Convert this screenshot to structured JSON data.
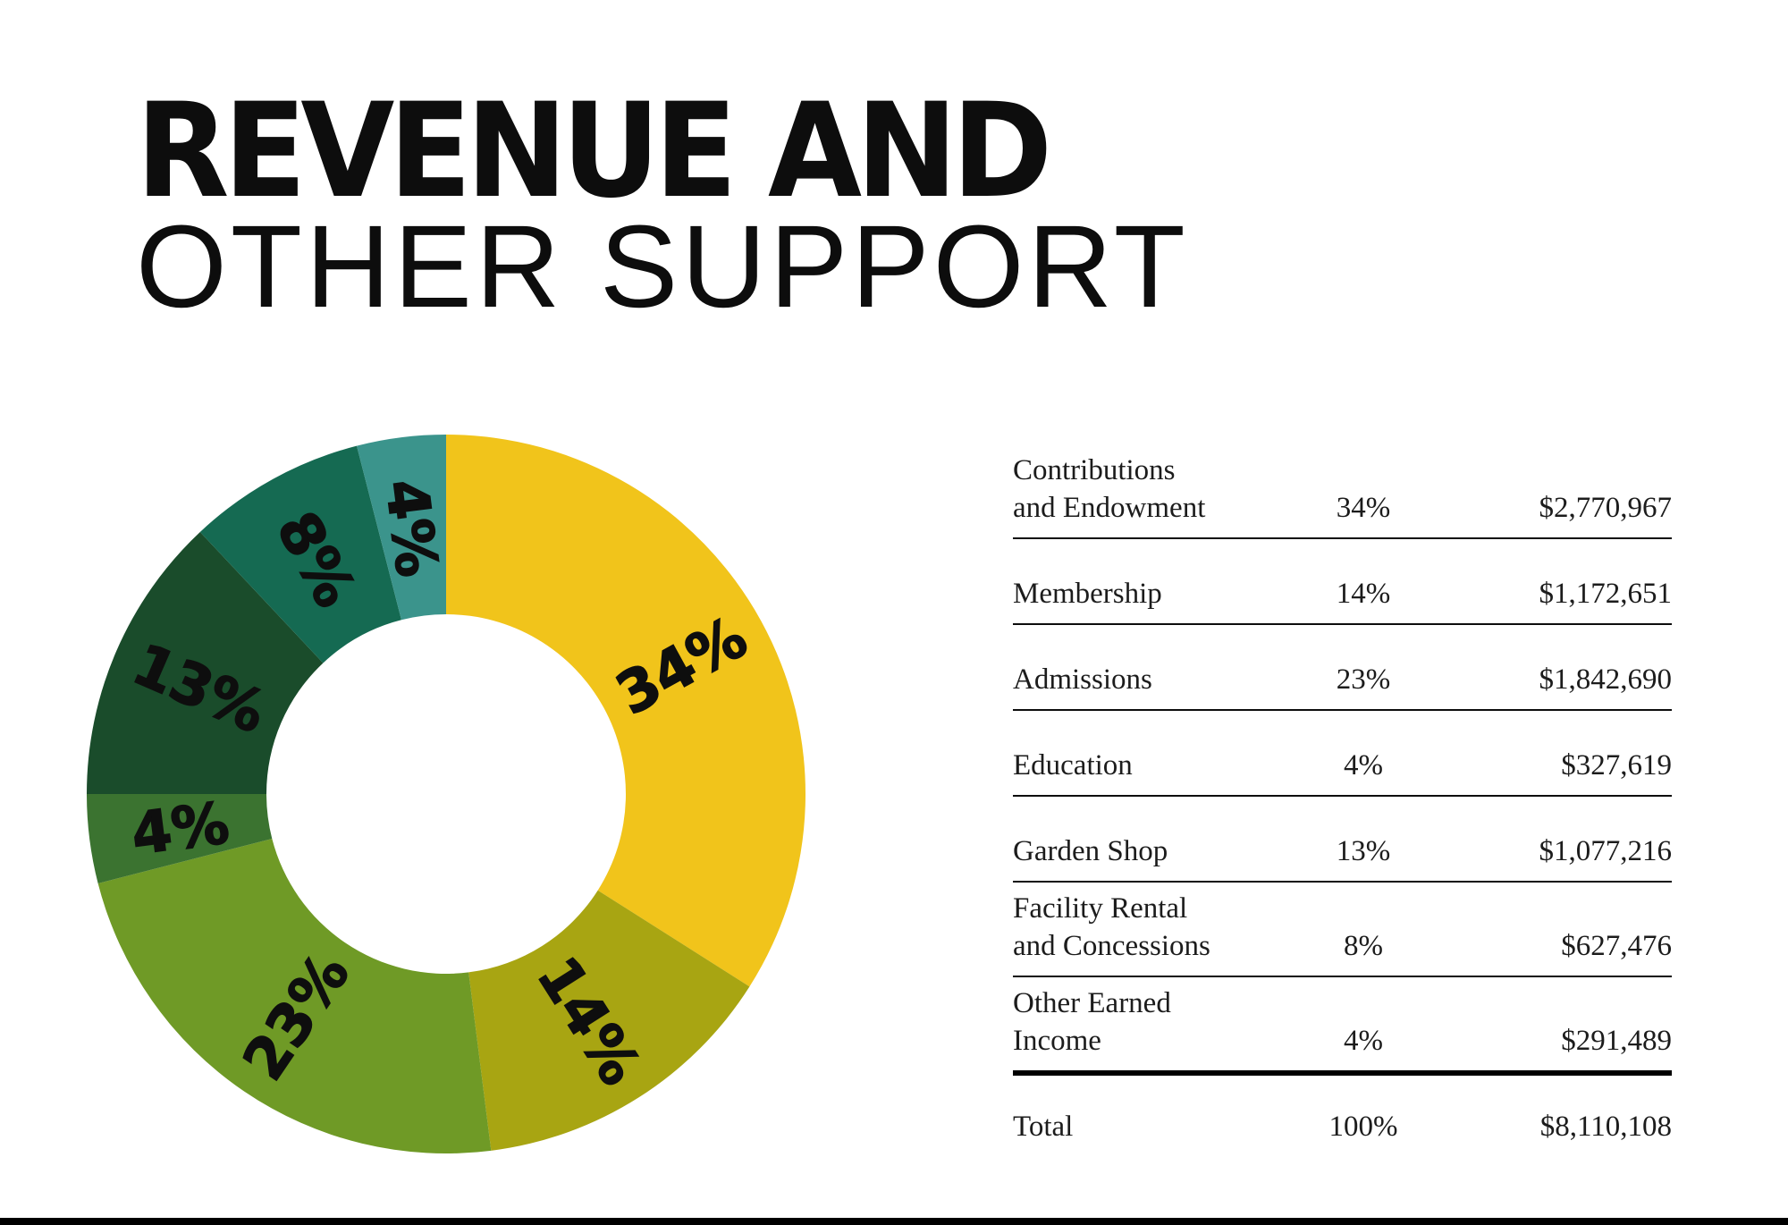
{
  "header": {
    "title_line1": "REVENUE AND",
    "title_line2": "OTHER SUPPORT"
  },
  "chart_data": {
    "type": "pie",
    "subtype": "donut",
    "title": "Revenue and Other Support",
    "start_angle_deg": 0,
    "direction": "clockwise",
    "inner_radius_ratio": 0.5,
    "label_format": "percent",
    "slices": [
      {
        "label": "Contributions and Endowment",
        "pct": 34,
        "amount": "$2,770,967",
        "color": "#F1C41B"
      },
      {
        "label": "Membership",
        "pct": 14,
        "amount": "$1,172,651",
        "color": "#A8A512"
      },
      {
        "label": "Admissions",
        "pct": 23,
        "amount": "$1,842,690",
        "color": "#6F9A26"
      },
      {
        "label": "Education",
        "pct": 4,
        "amount": "$327,619",
        "color": "#3B7330"
      },
      {
        "label": "Garden Shop",
        "pct": 13,
        "amount": "$1,077,216",
        "color": "#1A4C2B"
      },
      {
        "label": "Facility Rental and Concessions",
        "pct": 8,
        "amount": "$627,476",
        "color": "#156A52"
      },
      {
        "label": "Other Earned Income",
        "pct": 4,
        "amount": "$291,489",
        "color": "#3B948C"
      }
    ],
    "total": {
      "label": "Total",
      "pct": 100,
      "amount": "$8,110,108"
    }
  },
  "table": {
    "rows": [
      {
        "label_lines": [
          "Contributions",
          "and Endowment"
        ],
        "pct": "34%",
        "amount": "$2,770,967",
        "separator": "thin"
      },
      {
        "label_lines": [
          "Membership"
        ],
        "pct": "14%",
        "amount": "$1,172,651",
        "separator": "thin"
      },
      {
        "label_lines": [
          "Admissions"
        ],
        "pct": "23%",
        "amount": "$1,842,690",
        "separator": "thin"
      },
      {
        "label_lines": [
          "Education"
        ],
        "pct": "4%",
        "amount": "$327,619",
        "separator": "thin"
      },
      {
        "label_lines": [
          "Garden Shop"
        ],
        "pct": "13%",
        "amount": "$1,077,216",
        "separator": "thin"
      },
      {
        "label_lines": [
          "Facility Rental",
          "and Concessions"
        ],
        "pct": "8%",
        "amount": "$627,476",
        "separator": "thin"
      },
      {
        "label_lines": [
          "Other Earned",
          "Income"
        ],
        "pct": "4%",
        "amount": "$291,489",
        "separator": "thick"
      },
      {
        "label_lines": [
          "Total"
        ],
        "pct": "100%",
        "amount": "$8,110,108",
        "separator": "none"
      }
    ]
  },
  "footer": {
    "bar_color": "#000000"
  }
}
